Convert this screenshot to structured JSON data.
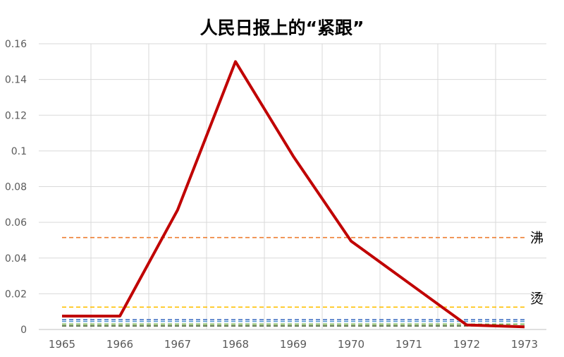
{
  "chart_data": {
    "type": "line",
    "title": "人民日报上的“紧跟”",
    "xlabel": "",
    "ylabel": "",
    "x": [
      "1965",
      "1966",
      "1967",
      "1968",
      "1969",
      "1970",
      "1971",
      "1972",
      "1973"
    ],
    "ylim": [
      0,
      0.16
    ],
    "y_ticks": [
      "0",
      "0.02",
      "0.04",
      "0.06",
      "0.08",
      "0.1",
      "0.12",
      "0.14",
      "0.16"
    ],
    "grid": true,
    "legend": "none",
    "series": [
      {
        "name": "",
        "color": "#C00000",
        "style": "solid",
        "values": [
          0.0075,
          0.0075,
          0.067,
          0.15,
          0.097,
          0.0495,
          0.026,
          0.0025,
          0.0015
        ]
      }
    ],
    "reference_lines": [
      {
        "label": "沸",
        "value": 0.0515,
        "color": "#ED7D31"
      },
      {
        "label": "烫",
        "value": 0.0125,
        "color": "#FFC000"
      },
      {
        "label": "",
        "value": 0.0055,
        "color": "#4472C4"
      },
      {
        "label": "",
        "value": 0.0045,
        "color": "#5B9BD5"
      },
      {
        "label": "",
        "value": 0.003,
        "color": "#70AD47"
      },
      {
        "label": "",
        "value": 0.002,
        "color": "#375623"
      }
    ]
  }
}
